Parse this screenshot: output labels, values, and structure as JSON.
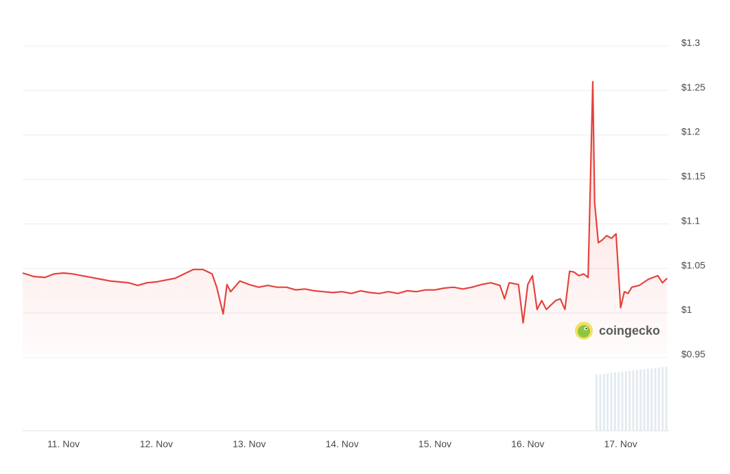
{
  "chart_data": {
    "type": "area",
    "title": "",
    "xlabel": "",
    "ylabel": "",
    "ylim": [
      0.95,
      1.3
    ],
    "yticks": [
      {
        "value": 1.3,
        "label": "$1.3"
      },
      {
        "value": 1.25,
        "label": "$1.25"
      },
      {
        "value": 1.2,
        "label": "$1.2"
      },
      {
        "value": 1.15,
        "label": "$1.15"
      },
      {
        "value": 1.1,
        "label": "$1.1"
      },
      {
        "value": 1.05,
        "label": "$1.05"
      },
      {
        "value": 1.0,
        "label": "$1"
      },
      {
        "value": 0.95,
        "label": "$0.95"
      }
    ],
    "xticks": [
      {
        "day": 11,
        "label": "11. Nov"
      },
      {
        "day": 12,
        "label": "12. Nov"
      },
      {
        "day": 13,
        "label": "13. Nov"
      },
      {
        "day": 14,
        "label": "14. Nov"
      },
      {
        "day": 15,
        "label": "15. Nov"
      },
      {
        "day": 16,
        "label": "16. Nov"
      },
      {
        "day": 17,
        "label": "17. Nov"
      }
    ],
    "xlim": [
      10.56,
      17.52
    ],
    "grid": true,
    "colors": {
      "line": "#e5413b",
      "fill": "#f8b9b6",
      "grid": "#ececec",
      "volume": "#e3ebf0"
    },
    "series": [
      {
        "x": [
          10.56,
          10.68,
          10.8,
          10.9,
          11.0,
          11.1,
          11.2,
          11.3,
          11.4,
          11.5,
          11.6,
          11.7,
          11.8,
          11.9,
          12.0,
          12.1,
          12.2,
          12.3,
          12.4,
          12.5,
          12.6,
          12.65,
          12.72,
          12.76,
          12.8,
          12.9,
          13.0,
          13.1,
          13.2,
          13.3,
          13.4,
          13.5,
          13.6,
          13.7,
          13.8,
          13.9,
          14.0,
          14.1,
          14.2,
          14.3,
          14.4,
          14.5,
          14.6,
          14.7,
          14.8,
          14.9,
          15.0,
          15.1,
          15.2,
          15.3,
          15.4,
          15.5,
          15.6,
          15.7,
          15.75,
          15.8,
          15.9,
          15.95,
          16.0,
          16.05,
          16.1,
          16.15,
          16.2,
          16.3,
          16.35,
          16.4,
          16.45,
          16.5,
          16.55,
          16.6,
          16.65,
          16.7,
          16.72,
          16.76,
          16.8,
          16.85,
          16.9,
          16.95,
          17.0,
          17.04,
          17.08,
          17.12,
          17.2,
          17.3,
          17.4,
          17.45,
          17.5
        ],
        "values": [
          1.041,
          1.037,
          1.036,
          1.04,
          1.041,
          1.04,
          1.038,
          1.036,
          1.034,
          1.032,
          1.031,
          1.03,
          1.027,
          1.03,
          1.031,
          1.033,
          1.035,
          1.04,
          1.045,
          1.045,
          1.04,
          1.025,
          0.995,
          1.028,
          1.02,
          1.032,
          1.028,
          1.025,
          1.027,
          1.025,
          1.025,
          1.022,
          1.023,
          1.021,
          1.02,
          1.019,
          1.02,
          1.018,
          1.021,
          1.019,
          1.018,
          1.02,
          1.018,
          1.021,
          1.02,
          1.022,
          1.022,
          1.024,
          1.025,
          1.023,
          1.025,
          1.028,
          1.03,
          1.027,
          1.012,
          1.03,
          1.028,
          0.985,
          1.028,
          1.038,
          1.0,
          1.01,
          1.0,
          1.01,
          1.012,
          1.0,
          1.043,
          1.042,
          1.038,
          1.04,
          1.036,
          1.256,
          1.12,
          1.075,
          1.078,
          1.083,
          1.08,
          1.085,
          1.002,
          1.02,
          1.018,
          1.025,
          1.027,
          1.034,
          1.038,
          1.03,
          1.035
        ]
      }
    ],
    "volume_bars_day_range": [
      16.73,
      17.52
    ]
  },
  "watermark": {
    "brand": "coingecko"
  }
}
